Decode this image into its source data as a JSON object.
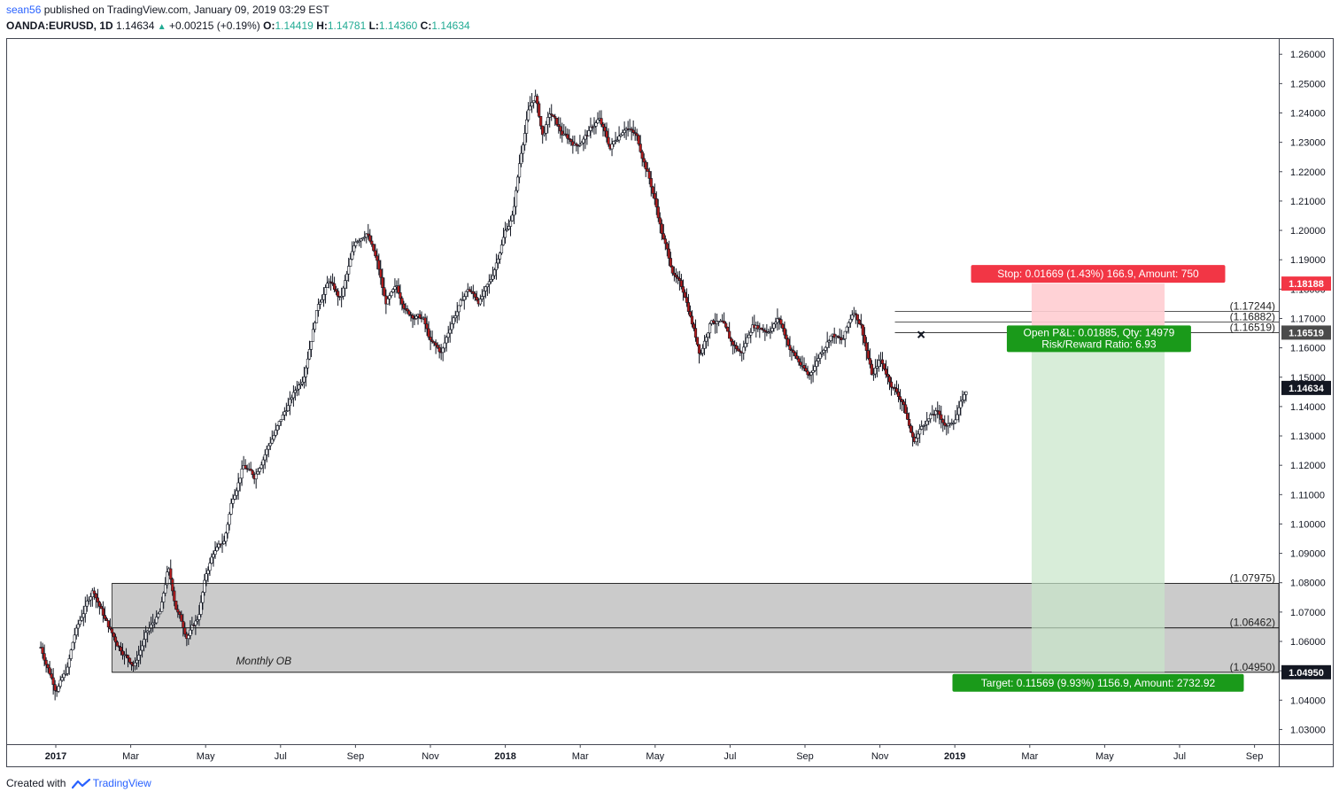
{
  "header": {
    "author": "sean56",
    "published_text": "published on TradingView.com, January 09, 2019 03:29 EST",
    "symbol": "OANDA:EURUSD,",
    "interval": "1D",
    "last": "1.14634",
    "change": "+0.00215 (+0.19%)",
    "o_label": "O:",
    "o_value": "1.14419",
    "h_label": "H:",
    "h_value": "1.14781",
    "l_label": "L:",
    "l_value": "1.14360",
    "c_label": "C:",
    "c_value": "1.14634"
  },
  "footer": {
    "created_with": "Created with",
    "brand": "TradingView"
  },
  "colors": {
    "up_candle": "#ffffff",
    "down_candle": "#b71c1c",
    "wick": "#131722",
    "stop_zone": "#ffcdd2",
    "target_zone": "#c8e6c9",
    "ob_zone": "#c8c8c8",
    "stop_label": "#f23645",
    "target_label": "#1a9a1a"
  },
  "chart_data": {
    "type": "candlestick",
    "title": "OANDA:EURUSD, 1D",
    "ylim": [
      1.025,
      1.2655
    ],
    "y_ticks": [
      "1.26000",
      "1.25000",
      "1.24000",
      "1.23000",
      "1.22000",
      "1.21000",
      "1.20000",
      "1.19000",
      "1.18000",
      "1.17000",
      "1.16000",
      "1.15000",
      "1.14000",
      "1.13000",
      "1.12000",
      "1.11000",
      "1.10000",
      "1.09000",
      "1.08000",
      "1.07000",
      "1.06000",
      "1.05000",
      "1.04000",
      "1.03000"
    ],
    "x_ticks": [
      {
        "label": "2017",
        "bold": true,
        "month_index": 0
      },
      {
        "label": "Mar",
        "bold": false,
        "month_index": 2
      },
      {
        "label": "May",
        "bold": false,
        "month_index": 4
      },
      {
        "label": "Jul",
        "bold": false,
        "month_index": 6
      },
      {
        "label": "Sep",
        "bold": false,
        "month_index": 8
      },
      {
        "label": "Nov",
        "bold": false,
        "month_index": 10
      },
      {
        "label": "2018",
        "bold": true,
        "month_index": 12
      },
      {
        "label": "Mar",
        "bold": false,
        "month_index": 14
      },
      {
        "label": "May",
        "bold": false,
        "month_index": 16
      },
      {
        "label": "Jul",
        "bold": false,
        "month_index": 18
      },
      {
        "label": "Sep",
        "bold": false,
        "month_index": 20
      },
      {
        "label": "Nov",
        "bold": false,
        "month_index": 22
      },
      {
        "label": "2019",
        "bold": true,
        "month_index": 24
      },
      {
        "label": "Mar",
        "bold": false,
        "month_index": 26
      },
      {
        "label": "May",
        "bold": false,
        "month_index": 28
      },
      {
        "label": "Jul",
        "bold": false,
        "month_index": 30
      },
      {
        "label": "Sep",
        "bold": false,
        "month_index": 32
      }
    ],
    "price_path_months": [
      [
        -0.4,
        1.058
      ],
      [
        0.0,
        1.044
      ],
      [
        0.3,
        1.05
      ],
      [
        0.5,
        1.062
      ],
      [
        0.8,
        1.072
      ],
      [
        1.0,
        1.078
      ],
      [
        1.3,
        1.068
      ],
      [
        1.6,
        1.06
      ],
      [
        1.9,
        1.055
      ],
      [
        2.1,
        1.052
      ],
      [
        2.4,
        1.062
      ],
      [
        2.8,
        1.07
      ],
      [
        3.0,
        1.085
      ],
      [
        3.2,
        1.072
      ],
      [
        3.5,
        1.062
      ],
      [
        3.8,
        1.068
      ],
      [
        4.0,
        1.082
      ],
      [
        4.2,
        1.09
      ],
      [
        4.5,
        1.094
      ],
      [
        4.7,
        1.108
      ],
      [
        5.0,
        1.12
      ],
      [
        5.3,
        1.116
      ],
      [
        5.6,
        1.125
      ],
      [
        6.0,
        1.135
      ],
      [
        6.3,
        1.143
      ],
      [
        6.6,
        1.15
      ],
      [
        7.0,
        1.175
      ],
      [
        7.3,
        1.183
      ],
      [
        7.6,
        1.176
      ],
      [
        8.0,
        1.196
      ],
      [
        8.3,
        1.2
      ],
      [
        8.6,
        1.188
      ],
      [
        8.8,
        1.175
      ],
      [
        9.1,
        1.18
      ],
      [
        9.4,
        1.172
      ],
      [
        9.8,
        1.17
      ],
      [
        10.0,
        1.162
      ],
      [
        10.3,
        1.158
      ],
      [
        10.6,
        1.17
      ],
      [
        11.0,
        1.18
      ],
      [
        11.3,
        1.176
      ],
      [
        11.6,
        1.182
      ],
      [
        12.0,
        1.2
      ],
      [
        12.2,
        1.205
      ],
      [
        12.4,
        1.225
      ],
      [
        12.6,
        1.24
      ],
      [
        12.8,
        1.246
      ],
      [
        13.0,
        1.232
      ],
      [
        13.2,
        1.24
      ],
      [
        13.5,
        1.233
      ],
      [
        13.9,
        1.229
      ],
      [
        14.2,
        1.233
      ],
      [
        14.5,
        1.238
      ],
      [
        14.8,
        1.228
      ],
      [
        15.2,
        1.236
      ],
      [
        15.5,
        1.232
      ],
      [
        15.8,
        1.22
      ],
      [
        16.0,
        1.21
      ],
      [
        16.2,
        1.198
      ],
      [
        16.5,
        1.185
      ],
      [
        16.8,
        1.178
      ],
      [
        17.0,
        1.168
      ],
      [
        17.2,
        1.158
      ],
      [
        17.5,
        1.17
      ],
      [
        17.8,
        1.168
      ],
      [
        18.0,
        1.162
      ],
      [
        18.3,
        1.158
      ],
      [
        18.6,
        1.168
      ],
      [
        19.0,
        1.166
      ],
      [
        19.3,
        1.17
      ],
      [
        19.6,
        1.16
      ],
      [
        19.9,
        1.154
      ],
      [
        20.1,
        1.15
      ],
      [
        20.4,
        1.158
      ],
      [
        20.7,
        1.165
      ],
      [
        21.0,
        1.162
      ],
      [
        21.3,
        1.173
      ],
      [
        21.5,
        1.168
      ],
      [
        21.8,
        1.15
      ],
      [
        22.0,
        1.156
      ],
      [
        22.3,
        1.148
      ],
      [
        22.6,
        1.142
      ],
      [
        22.9,
        1.128
      ],
      [
        23.2,
        1.135
      ],
      [
        23.5,
        1.138
      ],
      [
        23.8,
        1.133
      ],
      [
        24.0,
        1.136
      ],
      [
        24.3,
        1.145
      ]
    ],
    "ob_zone": {
      "label": "Monthly OB",
      "top": 1.07975,
      "mid": 1.06462,
      "bottom": 1.0495,
      "start_month": 1.5
    },
    "position": {
      "entry": 1.16519,
      "stop": 1.18188,
      "target": 1.0495,
      "start_month": 26.05,
      "end_month": 29.6,
      "stop_text": "Stop: 0.01669 (1.43%) 166.9, Amount: 750",
      "target_text": "Target: 0.11569 (9.93%) 1156.9, Amount: 2732.92",
      "pnl_text": "Open P&L: 0.01885, Qty: 14979",
      "rr_text": "Risk/Reward Ratio: 6.93"
    },
    "levels": [
      {
        "value": 1.17244,
        "label": "(1.17244)",
        "start_month": 22.4
      },
      {
        "value": 1.16882,
        "label": "(1.16882)",
        "start_month": 22.4
      },
      {
        "value": 1.16519,
        "label": "(1.16519)",
        "start_month": 22.4
      },
      {
        "value": 1.07975,
        "label": "(1.07975)",
        "start_month": 1.5
      },
      {
        "value": 1.06462,
        "label": "(1.06462)",
        "start_month": 1.5
      },
      {
        "value": 1.0495,
        "label": "(1.04950)",
        "start_month": 1.5
      }
    ],
    "marker": {
      "month": 23.1,
      "value": 1.1645
    },
    "price_badges": [
      {
        "value": 1.18188,
        "label": "1.18188",
        "color": "#f23645"
      },
      {
        "value": 1.16519,
        "label": "1.16519",
        "color": "#4b4b4b"
      },
      {
        "value": 1.14634,
        "label": "1.14634",
        "color": "#131722"
      },
      {
        "value": 1.0495,
        "label": "1.04950",
        "color": "#131722"
      }
    ]
  }
}
